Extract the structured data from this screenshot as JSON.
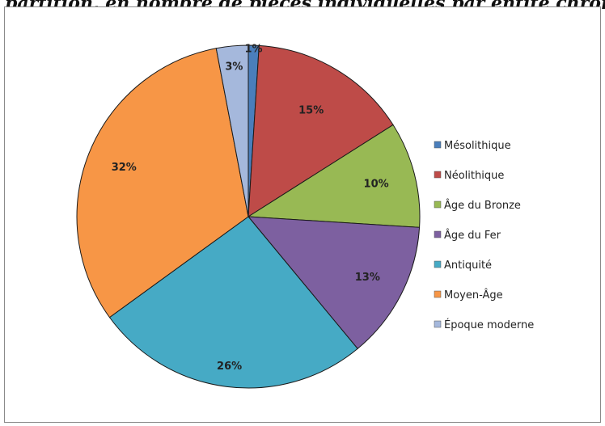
{
  "header_text": "partition, en nombre de pièces individuelles par entité chronologique",
  "chart_data": {
    "type": "pie",
    "title": "",
    "categories": [
      "Mésolithique",
      "Néolithique",
      "Âge du Bronze",
      "Âge du Fer",
      "Antiquité",
      "Moyen-Âge",
      "Époque moderne"
    ],
    "values": [
      1,
      15,
      10,
      13,
      26,
      32,
      3
    ],
    "labels": [
      "1%",
      "15%",
      "10%",
      "13%",
      "26%",
      "32%",
      "3%"
    ],
    "colors": [
      "#4a7ebb",
      "#be4b48",
      "#98b954",
      "#7d60a0",
      "#46aac5",
      "#f79646",
      "#a5b8dc"
    ],
    "legend_position": "right"
  }
}
